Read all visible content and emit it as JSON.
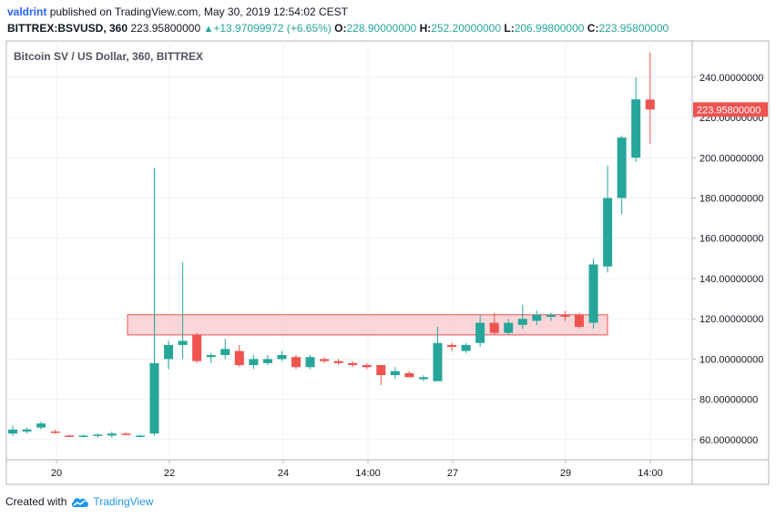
{
  "header": {
    "author": "valdrint",
    "published_text": "published on TradingView.com, May 30, 2019 12:54:02 CEST",
    "symbol": "BITTREX:BSVUSD, 360",
    "last": "223.95800000",
    "change": "+13.97099972 (+6.65%)",
    "o_label": "O:",
    "o_value": "228.90000000",
    "h_label": "H:",
    "h_value": "252.20000000",
    "l_label": "L:",
    "l_value": "206.99800000",
    "c_label": "C:",
    "c_value": "223.95800000"
  },
  "footer": {
    "created_with": "Created with",
    "brand": "TradingView"
  },
  "chart_data": {
    "type": "candlestick",
    "title": "Bitcoin SV / US Dollar, 360, BITTREX",
    "x_tick_labels": [
      "20",
      "22",
      "24",
      "14:00",
      "27",
      "29",
      "14:00"
    ],
    "y_ticks": [
      "60.00000000",
      "80.00000000",
      "100.00000000",
      "120.00000000",
      "140.00000000",
      "160.00000000",
      "180.00000000",
      "200.00000000",
      "220.00000000",
      "240.00000000"
    ],
    "ylim": [
      50,
      258
    ],
    "last_price_label": "223.95800000",
    "highlight_zone": {
      "y_low": 112,
      "y_high": 122
    },
    "colors": {
      "up": "#26a69a",
      "down": "#ef5350",
      "zone_fill": "#f8c8cc",
      "zone_border": "#ef5350"
    },
    "candles": [
      {
        "o": 63,
        "h": 67,
        "l": 62,
        "c": 65
      },
      {
        "o": 64,
        "h": 66,
        "l": 63,
        "c": 65
      },
      {
        "o": 66,
        "h": 69,
        "l": 65,
        "c": 68
      },
      {
        "o": 64,
        "h": 65,
        "l": 63,
        "c": 63.5
      },
      {
        "o": 62,
        "h": 62.5,
        "l": 61.5,
        "c": 61.7
      },
      {
        "o": 61.5,
        "h": 62.5,
        "l": 61,
        "c": 62
      },
      {
        "o": 62,
        "h": 63,
        "l": 61,
        "c": 62.5
      },
      {
        "o": 62,
        "h": 64,
        "l": 61,
        "c": 63
      },
      {
        "o": 63,
        "h": 63.5,
        "l": 62,
        "c": 62.3
      },
      {
        "o": 61.5,
        "h": 62.5,
        "l": 61,
        "c": 62
      },
      {
        "o": 63,
        "h": 195,
        "l": 62,
        "c": 98
      },
      {
        "o": 100,
        "h": 109,
        "l": 95,
        "c": 107
      },
      {
        "o": 107,
        "h": 148,
        "l": 100,
        "c": 109
      },
      {
        "o": 112,
        "h": 113,
        "l": 98,
        "c": 99
      },
      {
        "o": 101,
        "h": 103,
        "l": 98,
        "c": 102
      },
      {
        "o": 102,
        "h": 110,
        "l": 100,
        "c": 105
      },
      {
        "o": 104,
        "h": 107,
        "l": 96,
        "c": 97
      },
      {
        "o": 97,
        "h": 102,
        "l": 95,
        "c": 100
      },
      {
        "o": 98,
        "h": 102,
        "l": 97,
        "c": 100
      },
      {
        "o": 100,
        "h": 104,
        "l": 99,
        "c": 102
      },
      {
        "o": 101,
        "h": 102,
        "l": 95,
        "c": 96
      },
      {
        "o": 96,
        "h": 102,
        "l": 95,
        "c": 101
      },
      {
        "o": 100,
        "h": 101,
        "l": 98,
        "c": 99
      },
      {
        "o": 99,
        "h": 100,
        "l": 97,
        "c": 98
      },
      {
        "o": 98,
        "h": 99,
        "l": 96,
        "c": 97
      },
      {
        "o": 97,
        "h": 98,
        "l": 95,
        "c": 96
      },
      {
        "o": 97,
        "h": 97,
        "l": 87,
        "c": 92
      },
      {
        "o": 92,
        "h": 96,
        "l": 90,
        "c": 94
      },
      {
        "o": 93,
        "h": 94,
        "l": 91,
        "c": 91
      },
      {
        "o": 90,
        "h": 92,
        "l": 89,
        "c": 91
      },
      {
        "o": 89,
        "h": 116,
        "l": 89,
        "c": 108
      },
      {
        "o": 107,
        "h": 108,
        "l": 104,
        "c": 106
      },
      {
        "o": 104,
        "h": 108,
        "l": 103,
        "c": 107
      },
      {
        "o": 108,
        "h": 122,
        "l": 106,
        "c": 118
      },
      {
        "o": 118,
        "h": 123,
        "l": 112,
        "c": 113
      },
      {
        "o": 113,
        "h": 120,
        "l": 112,
        "c": 118
      },
      {
        "o": 117,
        "h": 127,
        "l": 115,
        "c": 120
      },
      {
        "o": 119,
        "h": 124,
        "l": 117,
        "c": 122
      },
      {
        "o": 121,
        "h": 123,
        "l": 119,
        "c": 122
      },
      {
        "o": 122,
        "h": 124,
        "l": 119,
        "c": 121
      },
      {
        "o": 122,
        "h": 123,
        "l": 115,
        "c": 116
      },
      {
        "o": 118,
        "h": 150,
        "l": 115,
        "c": 147
      },
      {
        "o": 146,
        "h": 196,
        "l": 143,
        "c": 180
      },
      {
        "o": 180,
        "h": 211,
        "l": 172,
        "c": 210
      },
      {
        "o": 200,
        "h": 240,
        "l": 198,
        "c": 229
      },
      {
        "o": 228.9,
        "h": 252.2,
        "l": 206.998,
        "c": 223.958
      }
    ]
  }
}
